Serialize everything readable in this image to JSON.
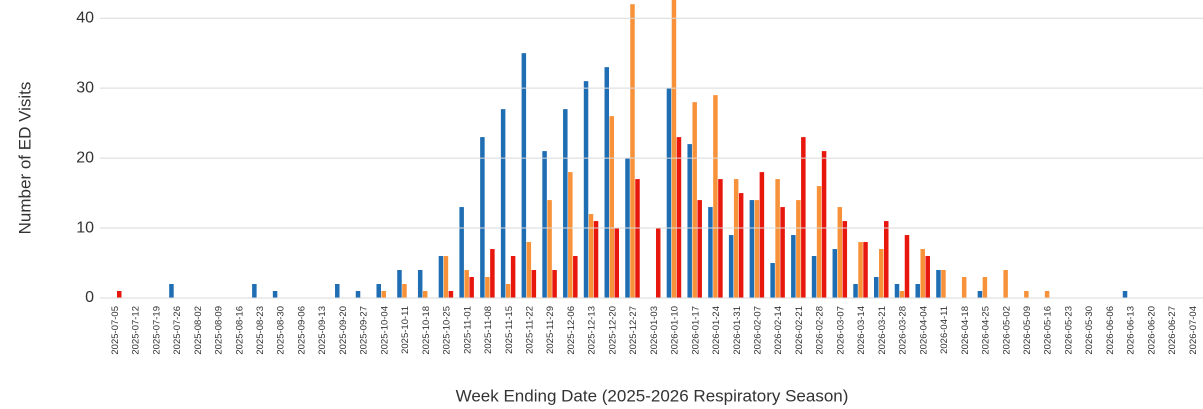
{
  "chart_data": {
    "type": "bar",
    "x_label": "Week Ending Date (2025-2026 Respiratory Season)",
    "y_label": "Number of ED Visits",
    "categories": [
      "2025-07-05",
      "2025-07-12",
      "2025-07-19",
      "2025-07-26",
      "2025-08-02",
      "2025-08-09",
      "2025-08-16",
      "2025-08-23",
      "2025-08-30",
      "2025-09-06",
      "2025-09-13",
      "2025-09-20",
      "2025-09-27",
      "2025-10-04",
      "2025-10-11",
      "2025-10-18",
      "2025-10-25",
      "2025-11-01",
      "2025-11-08",
      "2025-11-15",
      "2025-11-22",
      "2025-11-29",
      "2025-12-06",
      "2025-12-13",
      "2025-12-20",
      "2025-12-27",
      "2026-01-03",
      "2026-01-10",
      "2026-01-17",
      "2026-01-24",
      "2026-01-31",
      "2026-02-07",
      "2026-02-14",
      "2026-02-21",
      "2026-02-28",
      "2026-03-07",
      "2026-03-14",
      "2026-03-21",
      "2026-03-28",
      "2026-04-04",
      "2026-04-11",
      "2026-04-18",
      "2026-04-25",
      "2026-05-02",
      "2026-05-09",
      "2026-05-16",
      "2026-05-23",
      "2026-05-30",
      "2026-06-06",
      "2026-06-13",
      "2026-06-20",
      "2026-06-27",
      "2026-07-04"
    ],
    "series": [
      {
        "color": "#1f6db2",
        "values": [
          0,
          0,
          0,
          2,
          0,
          0,
          0,
          2,
          1,
          0,
          0,
          2,
          1,
          2,
          4,
          4,
          6,
          13,
          23,
          27,
          35,
          21,
          27,
          31,
          33,
          20,
          0,
          30,
          22,
          13,
          9,
          14,
          5,
          9,
          6,
          7,
          2,
          3,
          2,
          2,
          4,
          0,
          1,
          0,
          0,
          0,
          0,
          0,
          0,
          1,
          0,
          0,
          0
        ]
      },
      {
        "color": "#f7923a",
        "values": [
          0,
          0,
          0,
          0,
          0,
          0,
          0,
          0,
          0,
          0,
          0,
          0,
          0,
          1,
          2,
          1,
          6,
          4,
          3,
          2,
          8,
          14,
          18,
          12,
          26,
          42,
          0,
          44,
          28,
          29,
          17,
          14,
          17,
          14,
          16,
          13,
          8,
          7,
          1,
          7,
          4,
          3,
          3,
          4,
          1,
          1,
          0,
          0,
          0,
          0,
          0,
          0,
          0
        ]
      },
      {
        "color": "#e8170e",
        "values": [
          1,
          0,
          0,
          0,
          0,
          0,
          0,
          0,
          0,
          0,
          0,
          0,
          0,
          0,
          0,
          0,
          1,
          3,
          7,
          6,
          4,
          4,
          6,
          11,
          10,
          17,
          10,
          23,
          14,
          17,
          15,
          18,
          13,
          23,
          21,
          11,
          8,
          11,
          9,
          6,
          0,
          0,
          0,
          0,
          0,
          0,
          0,
          0,
          0,
          0,
          0,
          0,
          0
        ]
      }
    ],
    "ylim": [
      0,
      42.6
    ],
    "yticks": [
      0,
      10,
      20,
      30,
      40
    ],
    "grid": true
  }
}
